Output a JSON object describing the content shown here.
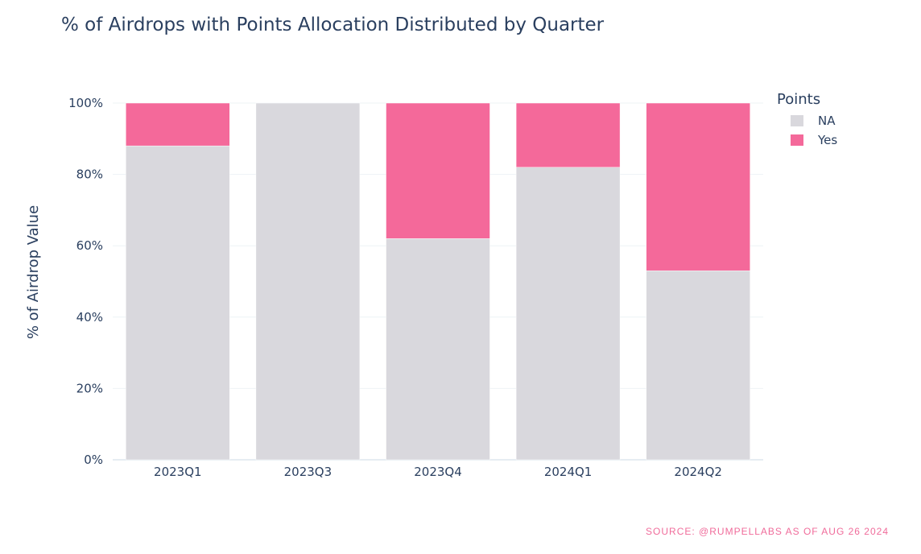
{
  "chart_data": {
    "type": "bar",
    "stacked": true,
    "title": "% of Airdrops with Points Allocation Distributed by Quarter",
    "ylabel": "% of Airdrop Value",
    "xlabel": "",
    "categories": [
      "2023Q1",
      "2023Q3",
      "2023Q4",
      "2024Q1",
      "2024Q2"
    ],
    "series": [
      {
        "name": "NA",
        "color": "#d9d8dd",
        "values": [
          88,
          100,
          62,
          82,
          53
        ]
      },
      {
        "name": "Yes",
        "color": "#f4699a",
        "values": [
          12,
          0,
          38,
          18,
          47
        ]
      }
    ],
    "ylim": [
      0,
      100
    ],
    "yticks": [
      {
        "value": 0,
        "label": "0%"
      },
      {
        "value": 20,
        "label": "20%"
      },
      {
        "value": 40,
        "label": "40%"
      },
      {
        "value": 60,
        "label": "60%"
      },
      {
        "value": 80,
        "label": "80%"
      },
      {
        "value": 100,
        "label": "100%"
      }
    ],
    "grid": true,
    "legend": {
      "title": "Points",
      "placement": "top-right"
    },
    "source": "SOURCE: @RUMPELLABS AS OF AUG 26 2024"
  }
}
